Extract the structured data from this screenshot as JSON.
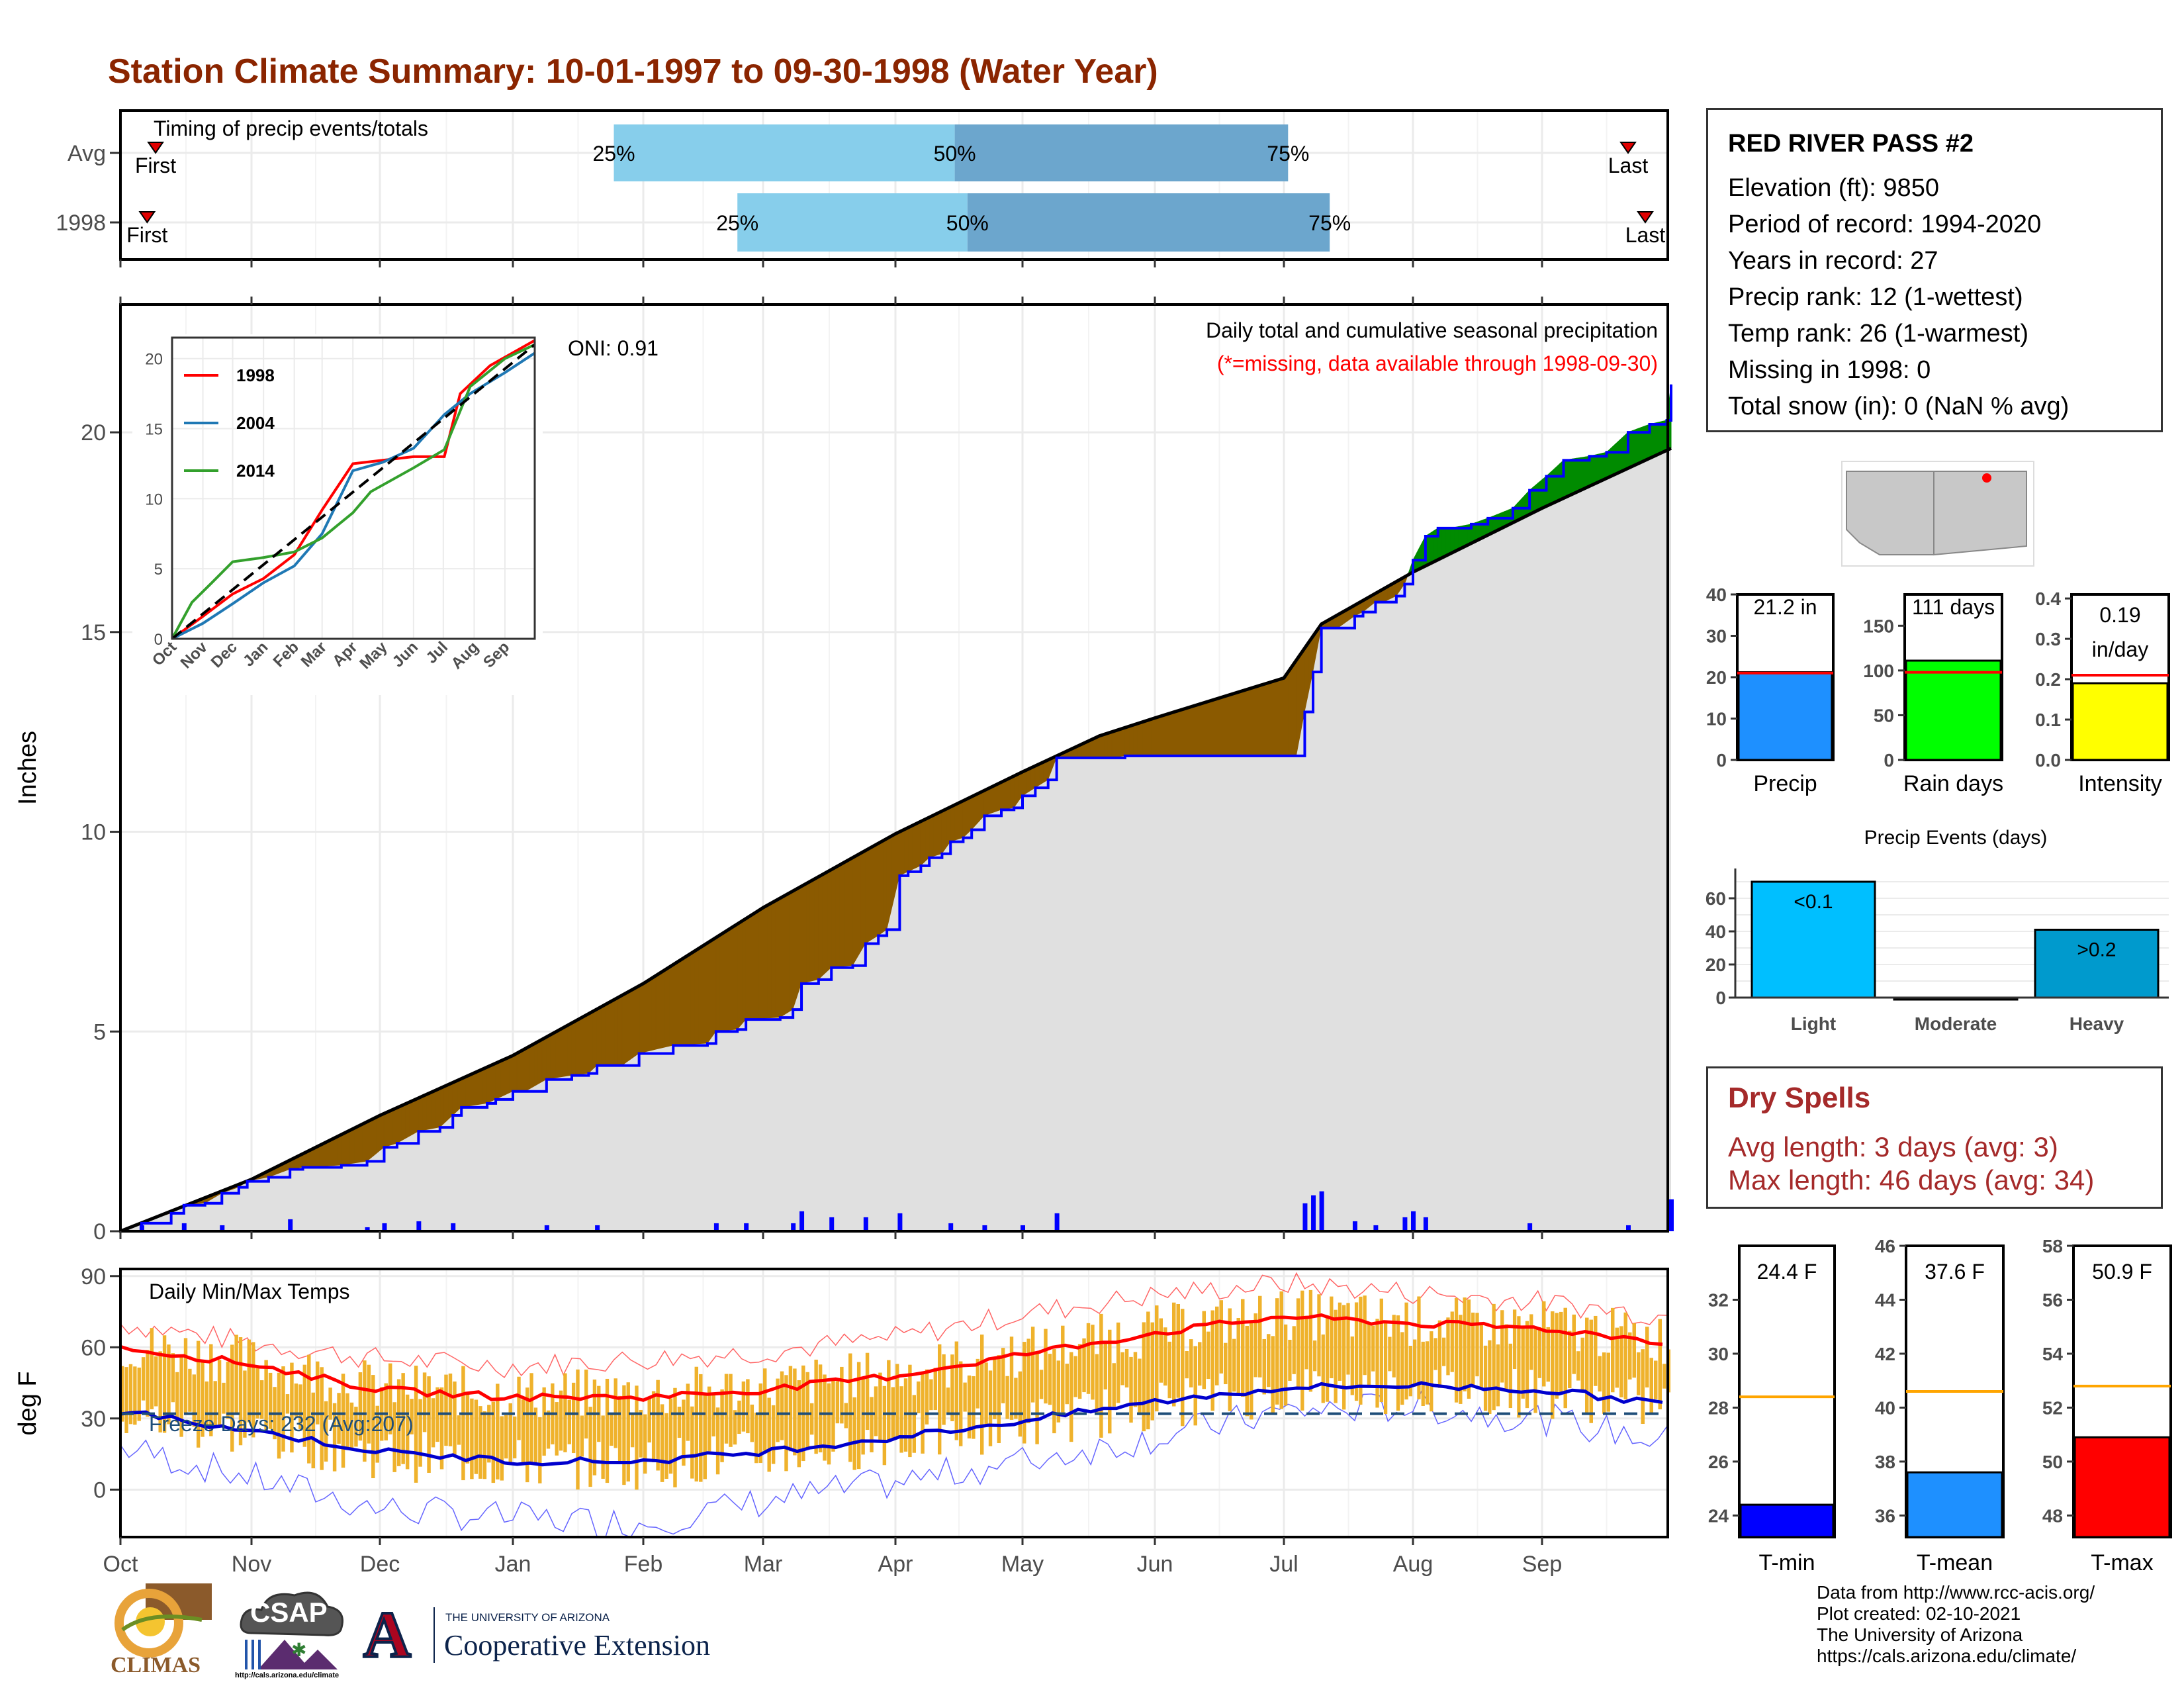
{
  "title": "Station Climate Summary: 10-01-1997 to 09-30-1998 (Water Year)",
  "station": {
    "name": "RED RIVER PASS #2",
    "lines": [
      "Elevation (ft): 9850",
      "Period of record: 1994-2020",
      "Years in record: 27",
      "Precip rank: 12 (1-wettest)",
      "Temp rank: 26 (1-warmest)",
      "Missing in 1998: 0",
      "Total snow (in): 0 (NaN % avg)"
    ]
  },
  "dry_spells": {
    "title": "Dry Spells",
    "avg_length": "Avg length: 3 days (avg: 3)",
    "max_length": "Max length: 46 days (avg: 34)"
  },
  "credits": [
    "Data from http://www.rcc-acis.org/",
    "Plot created: 02-10-2021",
    "The University of Arizona",
    "https://cals.arizona.edu/climate/"
  ],
  "logos": {
    "climas": "CLIMAS",
    "csap": "CSAP",
    "csap_url": "http://cals.arizona.edu/climate",
    "ua_small": "THE UNIVERSITY OF ARIZONA",
    "ua_big": "Cooperative Extension",
    "ua_letter": "A"
  },
  "colors": {
    "title": "#8B2500",
    "light_blue": "#87CEEB",
    "mid_blue": "#6CA6CD",
    "above": "#008B00",
    "below": "#8B5A00",
    "area": "#E0E0E0",
    "line": "#0000FF",
    "dots": "#0000FF",
    "bars": "#EFB22C",
    "tmax": "#FF0000",
    "tmin": "#0000CD",
    "precip_bar": "#1E90FF",
    "rain_bar": "#00FF00",
    "intensity_bar": "#FFFF00",
    "light_bar": "#00BFFF",
    "heavy_bar": "#009ACD",
    "tmin_bar": "#0000FF",
    "tmean_bar": "#1E90FF",
    "tmax_bar": "#FF0000",
    "avg_line": "#FFA500"
  },
  "chart_data": [
    {
      "id": "timing",
      "type": "bar",
      "title": "Timing of precip events/totals",
      "categories": [
        "Avg",
        "1998"
      ],
      "x_months": [
        "Oct",
        "Nov",
        "Dec",
        "Jan",
        "Feb",
        "Mar",
        "Apr",
        "May",
        "Jun",
        "Jul",
        "Aug",
        "Sep"
      ],
      "rows": [
        {
          "label": "Avg",
          "first_day": 8,
          "p25_day": 116,
          "p50_day": 196,
          "p75_day": 274,
          "last_day": 355,
          "first_label": "First",
          "last_label": "Last"
        },
        {
          "label": "1998",
          "first_day": 6,
          "p25_day": 145,
          "p50_day": 199,
          "p75_day": 284,
          "last_day": 359,
          "first_label": "First",
          "last_label": "Last"
        }
      ],
      "pct_labels": [
        "25%",
        "50%",
        "75%"
      ]
    },
    {
      "id": "precip",
      "type": "area",
      "title": "Daily total and cumulative seasonal precipitation",
      "subtitle": "(*=missing, data available through 1998-09-30)",
      "oni": "ONI: 0.91",
      "ylabel": "Inches",
      "ylim": [
        0,
        23.2
      ],
      "yticks": [
        0,
        5,
        10,
        15,
        20
      ],
      "x_months": [
        "Oct",
        "Nov",
        "Dec",
        "Jan",
        "Feb",
        "Mar",
        "Apr",
        "May",
        "Jun",
        "Jul",
        "Aug",
        "Sep"
      ],
      "month_start_days": [
        0,
        31,
        61,
        92,
        123,
        151,
        182,
        212,
        243,
        273,
        304,
        335
      ],
      "avg_cum": [
        [
          0,
          0
        ],
        [
          31,
          1.3
        ],
        [
          61,
          2.9
        ],
        [
          92,
          4.4
        ],
        [
          123,
          6.2
        ],
        [
          151,
          8.1
        ],
        [
          182,
          9.95
        ],
        [
          212,
          11.5
        ],
        [
          230,
          12.4
        ],
        [
          243,
          12.85
        ],
        [
          273,
          13.85
        ],
        [
          282,
          15.2
        ],
        [
          304,
          16.5
        ],
        [
          335,
          18.1
        ],
        [
          365,
          19.6
        ]
      ],
      "year_cum": [
        [
          0,
          0
        ],
        [
          5,
          0.2
        ],
        [
          12,
          0.45
        ],
        [
          15,
          0.65
        ],
        [
          20,
          0.7
        ],
        [
          24,
          0.95
        ],
        [
          28,
          1.1
        ],
        [
          30,
          1.25
        ],
        [
          35,
          1.35
        ],
        [
          40,
          1.55
        ],
        [
          43,
          1.6
        ],
        [
          52,
          1.65
        ],
        [
          58,
          1.75
        ],
        [
          62,
          2.1
        ],
        [
          65,
          2.2
        ],
        [
          70,
          2.5
        ],
        [
          75,
          2.6
        ],
        [
          78,
          2.9
        ],
        [
          80,
          3.1
        ],
        [
          86,
          3.2
        ],
        [
          88,
          3.3
        ],
        [
          92,
          3.5
        ],
        [
          95,
          3.5
        ],
        [
          100,
          3.8
        ],
        [
          106,
          3.9
        ],
        [
          110,
          3.95
        ],
        [
          112,
          4.15
        ],
        [
          118,
          4.15
        ],
        [
          122,
          4.45
        ],
        [
          130,
          4.65
        ],
        [
          138,
          4.7
        ],
        [
          140,
          5.0
        ],
        [
          145,
          5.05
        ],
        [
          147,
          5.3
        ],
        [
          155,
          5.35
        ],
        [
          158,
          5.55
        ],
        [
          160,
          6.2
        ],
        [
          164,
          6.3
        ],
        [
          167,
          6.6
        ],
        [
          172,
          6.65
        ],
        [
          175,
          7.2
        ],
        [
          178,
          7.4
        ],
        [
          180,
          7.55
        ],
        [
          183,
          8.9
        ],
        [
          185,
          9.0
        ],
        [
          188,
          9.15
        ],
        [
          190,
          9.35
        ],
        [
          193,
          9.45
        ],
        [
          195,
          9.75
        ],
        [
          198,
          9.85
        ],
        [
          200,
          10.05
        ],
        [
          203,
          10.4
        ],
        [
          207,
          10.55
        ],
        [
          210,
          10.6
        ],
        [
          212,
          10.9
        ],
        [
          215,
          11.1
        ],
        [
          218,
          11.3
        ],
        [
          220,
          11.85
        ],
        [
          225,
          11.85
        ],
        [
          233,
          11.85
        ],
        [
          236,
          11.9
        ],
        [
          240,
          11.9
        ],
        [
          258,
          11.9
        ],
        [
          272,
          11.9
        ],
        [
          276,
          11.9
        ],
        [
          278,
          13.0
        ],
        [
          280,
          14.0
        ],
        [
          282,
          15.1
        ],
        [
          286,
          15.1
        ],
        [
          290,
          15.4
        ],
        [
          292,
          15.5
        ],
        [
          295,
          15.75
        ],
        [
          297,
          15.75
        ],
        [
          300,
          15.9
        ],
        [
          302,
          16.2
        ],
        [
          304,
          16.8
        ],
        [
          307,
          17.4
        ],
        [
          310,
          17.6
        ],
        [
          313,
          17.6
        ],
        [
          318,
          17.7
        ],
        [
          322,
          17.85
        ],
        [
          328,
          18.1
        ],
        [
          332,
          18.55
        ],
        [
          336,
          18.9
        ],
        [
          340,
          19.3
        ],
        [
          346,
          19.4
        ],
        [
          350,
          19.5
        ],
        [
          355,
          20.0
        ],
        [
          360,
          20.2
        ],
        [
          364,
          20.3
        ],
        [
          365,
          21.2
        ]
      ],
      "daily": [
        [
          5,
          0.15
        ],
        [
          15,
          0.2
        ],
        [
          24,
          0.15
        ],
        [
          40,
          0.3
        ],
        [
          58,
          0.1
        ],
        [
          62,
          0.2
        ],
        [
          70,
          0.25
        ],
        [
          78,
          0.2
        ],
        [
          100,
          0.15
        ],
        [
          112,
          0.15
        ],
        [
          140,
          0.2
        ],
        [
          147,
          0.2
        ],
        [
          158,
          0.2
        ],
        [
          160,
          0.5
        ],
        [
          167,
          0.35
        ],
        [
          175,
          0.35
        ],
        [
          183,
          0.45
        ],
        [
          195,
          0.2
        ],
        [
          203,
          0.15
        ],
        [
          212,
          0.15
        ],
        [
          220,
          0.45
        ],
        [
          278,
          0.7
        ],
        [
          280,
          0.9
        ],
        [
          282,
          1.0
        ],
        [
          290,
          0.25
        ],
        [
          295,
          0.15
        ],
        [
          302,
          0.35
        ],
        [
          304,
          0.5
        ],
        [
          307,
          0.35
        ],
        [
          332,
          0.2
        ],
        [
          355,
          0.15
        ],
        [
          365,
          0.8
        ]
      ]
    },
    {
      "id": "inset",
      "type": "line",
      "ylim": [
        0,
        21.5
      ],
      "yticks": [
        0,
        5,
        10,
        15,
        20
      ],
      "x_months": [
        "Oct",
        "Nov",
        "Dec",
        "Jan",
        "Feb",
        "Mar",
        "Apr",
        "May",
        "Jun",
        "Jul",
        "Aug",
        "Sep"
      ],
      "series": [
        {
          "name": "1998",
          "color": "#FF0000",
          "values": [
            [
              0,
              0
            ],
            [
              31,
              1.6
            ],
            [
              61,
              3.2
            ],
            [
              92,
              4.3
            ],
            [
              123,
              6.0
            ],
            [
              151,
              9.2
            ],
            [
              182,
              12.5
            ],
            [
              243,
              13.0
            ],
            [
              274,
              13.0
            ],
            [
              290,
              17.5
            ],
            [
              320,
              19.5
            ],
            [
              365,
              21.3
            ]
          ]
        },
        {
          "name": "2004",
          "color": "#1F78B4",
          "values": [
            [
              0,
              0
            ],
            [
              31,
              1.1
            ],
            [
              61,
              2.5
            ],
            [
              92,
              4.0
            ],
            [
              123,
              5.2
            ],
            [
              151,
              7.5
            ],
            [
              182,
              12.0
            ],
            [
              212,
              12.6
            ],
            [
              243,
              13.6
            ],
            [
              274,
              16.0
            ],
            [
              300,
              17.5
            ],
            [
              335,
              19.0
            ],
            [
              365,
              20.4
            ]
          ]
        },
        {
          "name": "2014",
          "color": "#33A02C",
          "values": [
            [
              0,
              0
            ],
            [
              20,
              2.6
            ],
            [
              40,
              4.0
            ],
            [
              61,
              5.5
            ],
            [
              92,
              5.8
            ],
            [
              123,
              6.2
            ],
            [
              151,
              7.2
            ],
            [
              182,
              9.0
            ],
            [
              200,
              10.5
            ],
            [
              243,
              12.2
            ],
            [
              274,
              13.5
            ],
            [
              300,
              18.0
            ],
            [
              335,
              20.0
            ],
            [
              365,
              21.0
            ]
          ]
        }
      ],
      "avg": [
        [
          0,
          0
        ],
        [
          365,
          21.0
        ]
      ]
    },
    {
      "id": "temps",
      "type": "line",
      "title": "Daily Min/Max Temps",
      "freeze_label": "Freeze Days: 232 (Avg:207)",
      "ylabel": "deg F",
      "ylim": [
        -20,
        93
      ],
      "yticks": [
        0,
        30,
        60,
        90
      ],
      "freeze_line": 32,
      "x_months": [
        "Oct",
        "Nov",
        "Dec",
        "Jan",
        "Feb",
        "Mar",
        "Apr",
        "May",
        "Jun",
        "Jul",
        "Aug",
        "Sep"
      ],
      "avg_max": [
        [
          0,
          60
        ],
        [
          31,
          53
        ],
        [
          61,
          42
        ],
        [
          92,
          39
        ],
        [
          123,
          39
        ],
        [
          151,
          42
        ],
        [
          182,
          48
        ],
        [
          212,
          57
        ],
        [
          243,
          66
        ],
        [
          273,
          73
        ],
        [
          304,
          70
        ],
        [
          335,
          68
        ],
        [
          365,
          62
        ]
      ],
      "avg_min": [
        [
          0,
          33
        ],
        [
          31,
          25
        ],
        [
          61,
          16
        ],
        [
          92,
          12
        ],
        [
          123,
          12
        ],
        [
          151,
          16
        ],
        [
          182,
          22
        ],
        [
          212,
          29
        ],
        [
          243,
          37
        ],
        [
          273,
          43
        ],
        [
          304,
          44
        ],
        [
          335,
          42
        ],
        [
          365,
          36
        ]
      ],
      "rec_max": [
        [
          0,
          70
        ],
        [
          31,
          62
        ],
        [
          61,
          55
        ],
        [
          92,
          52
        ],
        [
          123,
          55
        ],
        [
          151,
          58
        ],
        [
          182,
          64
        ],
        [
          212,
          74
        ],
        [
          243,
          82
        ],
        [
          273,
          87
        ],
        [
          304,
          83
        ],
        [
          335,
          79
        ],
        [
          365,
          73
        ]
      ],
      "rec_min": [
        [
          0,
          18
        ],
        [
          31,
          5
        ],
        [
          61,
          -8
        ],
        [
          92,
          -12
        ],
        [
          123,
          -14
        ],
        [
          151,
          -5
        ],
        [
          182,
          3
        ],
        [
          212,
          12
        ],
        [
          243,
          22
        ],
        [
          273,
          33
        ],
        [
          304,
          35
        ],
        [
          335,
          30
        ],
        [
          365,
          20
        ]
      ]
    },
    {
      "id": "totals",
      "type": "bar",
      "panels": [
        {
          "label": "Precip",
          "value": 21.2,
          "avg": 21.0,
          "value_label": "21.2 in",
          "ylim": [
            0,
            40
          ],
          "yticks": [
            0,
            10,
            20,
            30,
            40
          ]
        },
        {
          "label": "Rain days",
          "value": 111,
          "avg": 98,
          "value_label": "111 days",
          "ylim": [
            0,
            185
          ],
          "yticks": [
            0,
            50,
            100,
            150
          ]
        },
        {
          "label": "Intensity",
          "value": 0.19,
          "avg": 0.21,
          "value_label_1": "0.19",
          "value_label_2": "in/day",
          "ylim": [
            0,
            0.41
          ],
          "yticks": [
            0.0,
            0.1,
            0.2,
            0.3,
            0.4
          ]
        }
      ]
    },
    {
      "id": "events",
      "type": "bar",
      "title": "Precip Events (days)",
      "categories": [
        "Light",
        "Moderate",
        "Heavy"
      ],
      "values": [
        70,
        0,
        41
      ],
      "bar_labels": [
        "<0.1",
        "",
        ">0.2"
      ],
      "ylim": [
        0,
        70
      ],
      "yticks": [
        0,
        20,
        40,
        60
      ]
    },
    {
      "id": "temp_bars",
      "type": "bar",
      "panels": [
        {
          "label": "T-min",
          "value": 24.4,
          "avg": 28.4,
          "value_label": "24.4 F",
          "ylim": [
            23.2,
            34
          ],
          "yticks": [
            24,
            26,
            28,
            30,
            32
          ]
        },
        {
          "label": "T-mean",
          "value": 37.6,
          "avg": 40.6,
          "value_label": "37.6 F",
          "ylim": [
            35.2,
            46
          ],
          "yticks": [
            36,
            38,
            40,
            42,
            44,
            46
          ]
        },
        {
          "label": "T-max",
          "value": 50.9,
          "avg": 52.8,
          "value_label": "50.9 F",
          "ylim": [
            47.2,
            58
          ],
          "yticks": [
            48,
            50,
            52,
            54,
            56,
            58
          ]
        }
      ]
    }
  ]
}
